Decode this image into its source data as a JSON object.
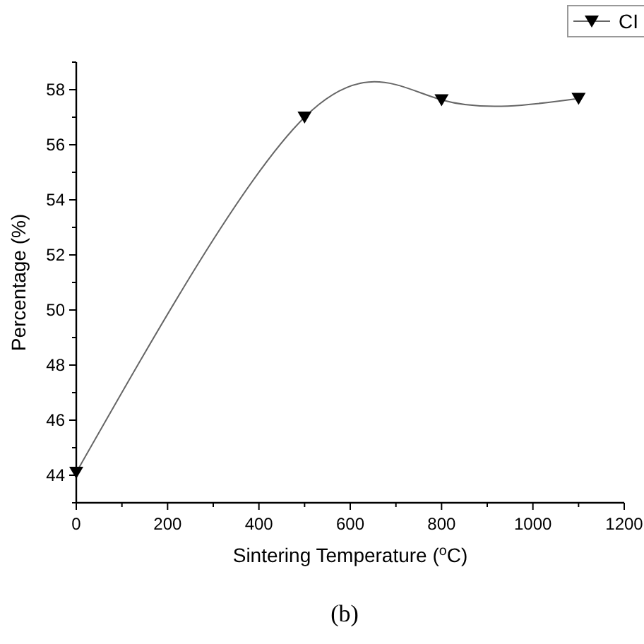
{
  "chart_data": {
    "type": "line",
    "xlabel": "Sintering Temperature ($^{o}$C)",
    "ylabel": "Percentage (%)",
    "x": [
      0,
      500,
      800,
      1100
    ],
    "series": [
      {
        "name": "CI",
        "color": "#000000",
        "values": [
          44.1,
          57.0,
          57.63,
          57.68
        ]
      }
    ],
    "xlim": [
      0,
      1200
    ],
    "xticks": [
      0,
      200,
      400,
      600,
      800,
      1000,
      1200
    ],
    "ylim": [
      43,
      59
    ],
    "yticks": [
      44,
      46,
      48,
      50,
      52,
      54,
      56,
      58
    ],
    "marker": "triangle",
    "legend": "top right",
    "grid": false,
    "annotations": [
      "(b)"
    ]
  }
}
